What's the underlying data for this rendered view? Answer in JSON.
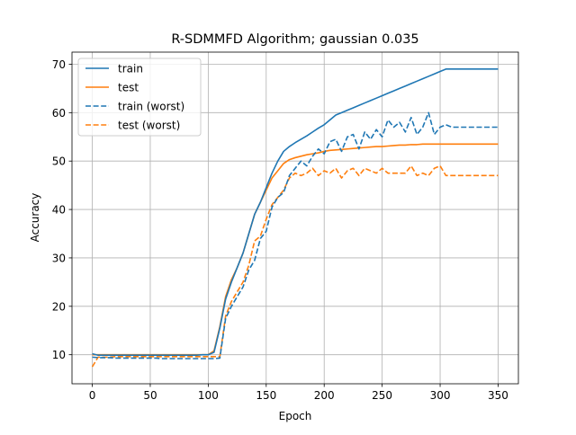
{
  "chart_data": {
    "type": "line",
    "title": "R-SDMMFD Algorithm; gaussian 0.035",
    "xlabel": "Epoch",
    "ylabel": "Accuracy",
    "xlim": [
      -17.5,
      367.5
    ],
    "ylim": [
      4.0,
      72.5
    ],
    "xticks": [
      0,
      50,
      100,
      150,
      200,
      250,
      300,
      350
    ],
    "yticks": [
      10,
      20,
      30,
      40,
      50,
      60,
      70
    ],
    "grid": true,
    "legend_position": "top-left",
    "x": [
      0,
      5,
      10,
      15,
      20,
      25,
      30,
      35,
      40,
      45,
      50,
      55,
      60,
      65,
      70,
      75,
      80,
      85,
      90,
      95,
      100,
      105,
      110,
      115,
      120,
      125,
      130,
      135,
      140,
      145,
      150,
      155,
      160,
      165,
      170,
      175,
      180,
      185,
      190,
      195,
      200,
      205,
      210,
      215,
      220,
      225,
      230,
      235,
      240,
      245,
      250,
      255,
      260,
      265,
      270,
      275,
      280,
      285,
      290,
      295,
      300,
      305,
      310,
      315,
      320,
      325,
      330,
      335,
      340,
      345,
      350
    ],
    "series": [
      {
        "name": "train",
        "color": "#1f77b4",
        "dash": "solid",
        "values": [
          10.2,
          9.9,
          9.9,
          9.9,
          9.9,
          9.9,
          9.9,
          9.9,
          9.9,
          9.9,
          9.9,
          9.9,
          9.9,
          9.9,
          9.9,
          9.9,
          9.9,
          9.9,
          9.9,
          10.0,
          10.0,
          10.5,
          15.5,
          21.5,
          25.0,
          28.0,
          31.0,
          35.0,
          39.0,
          41.5,
          44.5,
          47.5,
          50.0,
          52.0,
          53.0,
          53.8,
          54.5,
          55.2,
          56.0,
          56.8,
          57.5,
          58.5,
          59.5,
          60.0,
          60.5,
          61.0,
          61.5,
          62.0,
          62.5,
          63.0,
          63.5,
          64.0,
          64.5,
          65.0,
          65.5,
          66.0,
          66.5,
          67.0,
          67.5,
          68.0,
          68.5,
          69.0,
          69.0,
          69.0,
          69.0,
          69.0,
          69.0,
          69.0,
          69.0,
          69.0,
          69.0
        ]
      },
      {
        "name": "test",
        "color": "#ff7f0e",
        "dash": "solid",
        "values": [
          10.0,
          10.0,
          10.0,
          10.0,
          10.0,
          10.0,
          10.0,
          10.0,
          10.0,
          10.0,
          10.0,
          10.0,
          10.0,
          10.0,
          10.0,
          10.0,
          10.0,
          10.0,
          10.0,
          10.0,
          10.0,
          10.8,
          15.8,
          22.0,
          25.5,
          28.0,
          31.0,
          35.0,
          39.0,
          41.5,
          44.0,
          46.5,
          48.0,
          49.5,
          50.3,
          50.7,
          51.0,
          51.3,
          51.5,
          51.7,
          52.0,
          52.2,
          52.3,
          52.4,
          52.5,
          52.6,
          52.7,
          52.8,
          52.9,
          53.0,
          53.0,
          53.1,
          53.2,
          53.3,
          53.3,
          53.4,
          53.4,
          53.5,
          53.5,
          53.5,
          53.5,
          53.5,
          53.5,
          53.5,
          53.5,
          53.5,
          53.5,
          53.5,
          53.5,
          53.5,
          53.5
        ]
      },
      {
        "name": "train (worst)",
        "color": "#1f77b4",
        "dash": "dashed",
        "values": [
          9.5,
          9.4,
          9.4,
          9.4,
          9.3,
          9.3,
          9.3,
          9.3,
          9.3,
          9.3,
          9.3,
          9.3,
          9.2,
          9.2,
          9.2,
          9.2,
          9.2,
          9.2,
          9.2,
          9.2,
          9.2,
          9.2,
          9.3,
          17.5,
          20.0,
          22.0,
          24.0,
          27.5,
          29.5,
          34.0,
          35.5,
          40.5,
          42.5,
          43.5,
          47.0,
          48.5,
          50.0,
          49.0,
          51.0,
          52.5,
          51.5,
          54.0,
          54.5,
          52.0,
          55.0,
          55.5,
          52.5,
          56.0,
          54.5,
          56.5,
          55.0,
          58.5,
          57.0,
          58.0,
          56.0,
          59.0,
          55.5,
          57.0,
          60.0,
          55.5,
          57.0,
          57.5,
          57.0,
          57.0,
          57.0,
          57.0,
          57.0,
          57.0,
          57.0,
          57.0,
          57.0
        ]
      },
      {
        "name": "test (worst)",
        "color": "#ff7f0e",
        "dash": "dashed",
        "values": [
          7.5,
          9.5,
          9.5,
          9.5,
          9.6,
          9.6,
          9.6,
          9.6,
          9.6,
          9.6,
          9.6,
          9.6,
          9.6,
          9.6,
          9.6,
          9.6,
          9.6,
          9.6,
          9.6,
          9.6,
          9.6,
          9.6,
          9.6,
          18.0,
          21.0,
          23.0,
          25.0,
          28.5,
          33.5,
          34.5,
          38.0,
          41.0,
          42.5,
          44.0,
          46.5,
          47.5,
          47.0,
          47.5,
          48.5,
          47.0,
          48.0,
          47.5,
          48.5,
          46.5,
          48.0,
          48.5,
          47.0,
          48.5,
          48.0,
          47.5,
          48.5,
          47.5,
          47.5,
          47.5,
          47.5,
          49.0,
          47.0,
          47.5,
          47.0,
          48.5,
          49.0,
          47.0,
          47.0,
          47.0,
          47.0,
          47.0,
          47.0,
          47.0,
          47.0,
          47.0,
          47.0
        ]
      }
    ]
  }
}
